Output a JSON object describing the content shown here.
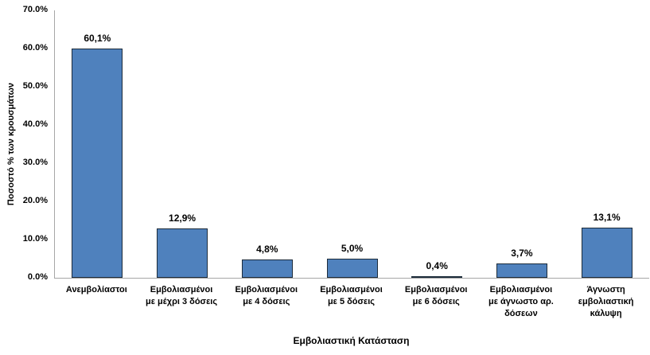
{
  "chart_data": {
    "type": "bar",
    "title": "",
    "xlabel": "Εμβολιαστική Κατάσταση",
    "ylabel": "Ποσοστό % των κρουσμάτων",
    "ylim": [
      0,
      70
    ],
    "grid": "off",
    "legend": "none",
    "y_ticks": [
      {
        "value": 0,
        "label": "0.0%"
      },
      {
        "value": 10,
        "label": "10.0%"
      },
      {
        "value": 20,
        "label": "20.0%"
      },
      {
        "value": 30,
        "label": "30.0%"
      },
      {
        "value": 40,
        "label": "40.0%"
      },
      {
        "value": 50,
        "label": "50.0%"
      },
      {
        "value": 60,
        "label": "60.0%"
      },
      {
        "value": 70,
        "label": "70.0%"
      }
    ],
    "categories": [
      "Ανεμβολίαστοι",
      "Εμβολιασμένοι με μέχρι 3 δόσεις",
      "Εμβολιασμένοι με 4 δόσεις",
      "Εμβολιασμένοι με 5 δόσεις",
      "Εμβολιασμένοι με 6 δόσεις",
      "Εμβολιασμένοι με άγνωστο αρ. δόσεων",
      "Άγνωστη εμβολιαστική κάλυψη"
    ],
    "category_lines": [
      [
        "Ανεμβολίαστοι"
      ],
      [
        "Εμβολιασμένοι",
        "με μέχρι 3 δόσεις"
      ],
      [
        "Εμβολιασμένοι",
        "με 4 δόσεις"
      ],
      [
        "Εμβολιασμένοι",
        "με 5 δόσεις"
      ],
      [
        "Εμβολιασμένοι",
        "με 6 δόσεις"
      ],
      [
        "Εμβολιασμένοι",
        "με άγνωστο αρ.",
        "δόσεων"
      ],
      [
        "Άγνωστη",
        "εμβολιαστική",
        "κάλυψη"
      ]
    ],
    "values": [
      60.1,
      12.9,
      4.8,
      5.0,
      0.4,
      3.7,
      13.1
    ],
    "data_labels": [
      "60,1%",
      "12,9%",
      "4,8%",
      "5,0%",
      "0,4%",
      "3,7%",
      "13,1%"
    ],
    "colors": {
      "bar_fill": "#4F81BD",
      "bar_border": "#1C2B3A",
      "axis_line": "#A6A6A6",
      "text": "#000000",
      "background": "#FFFFFF"
    }
  }
}
